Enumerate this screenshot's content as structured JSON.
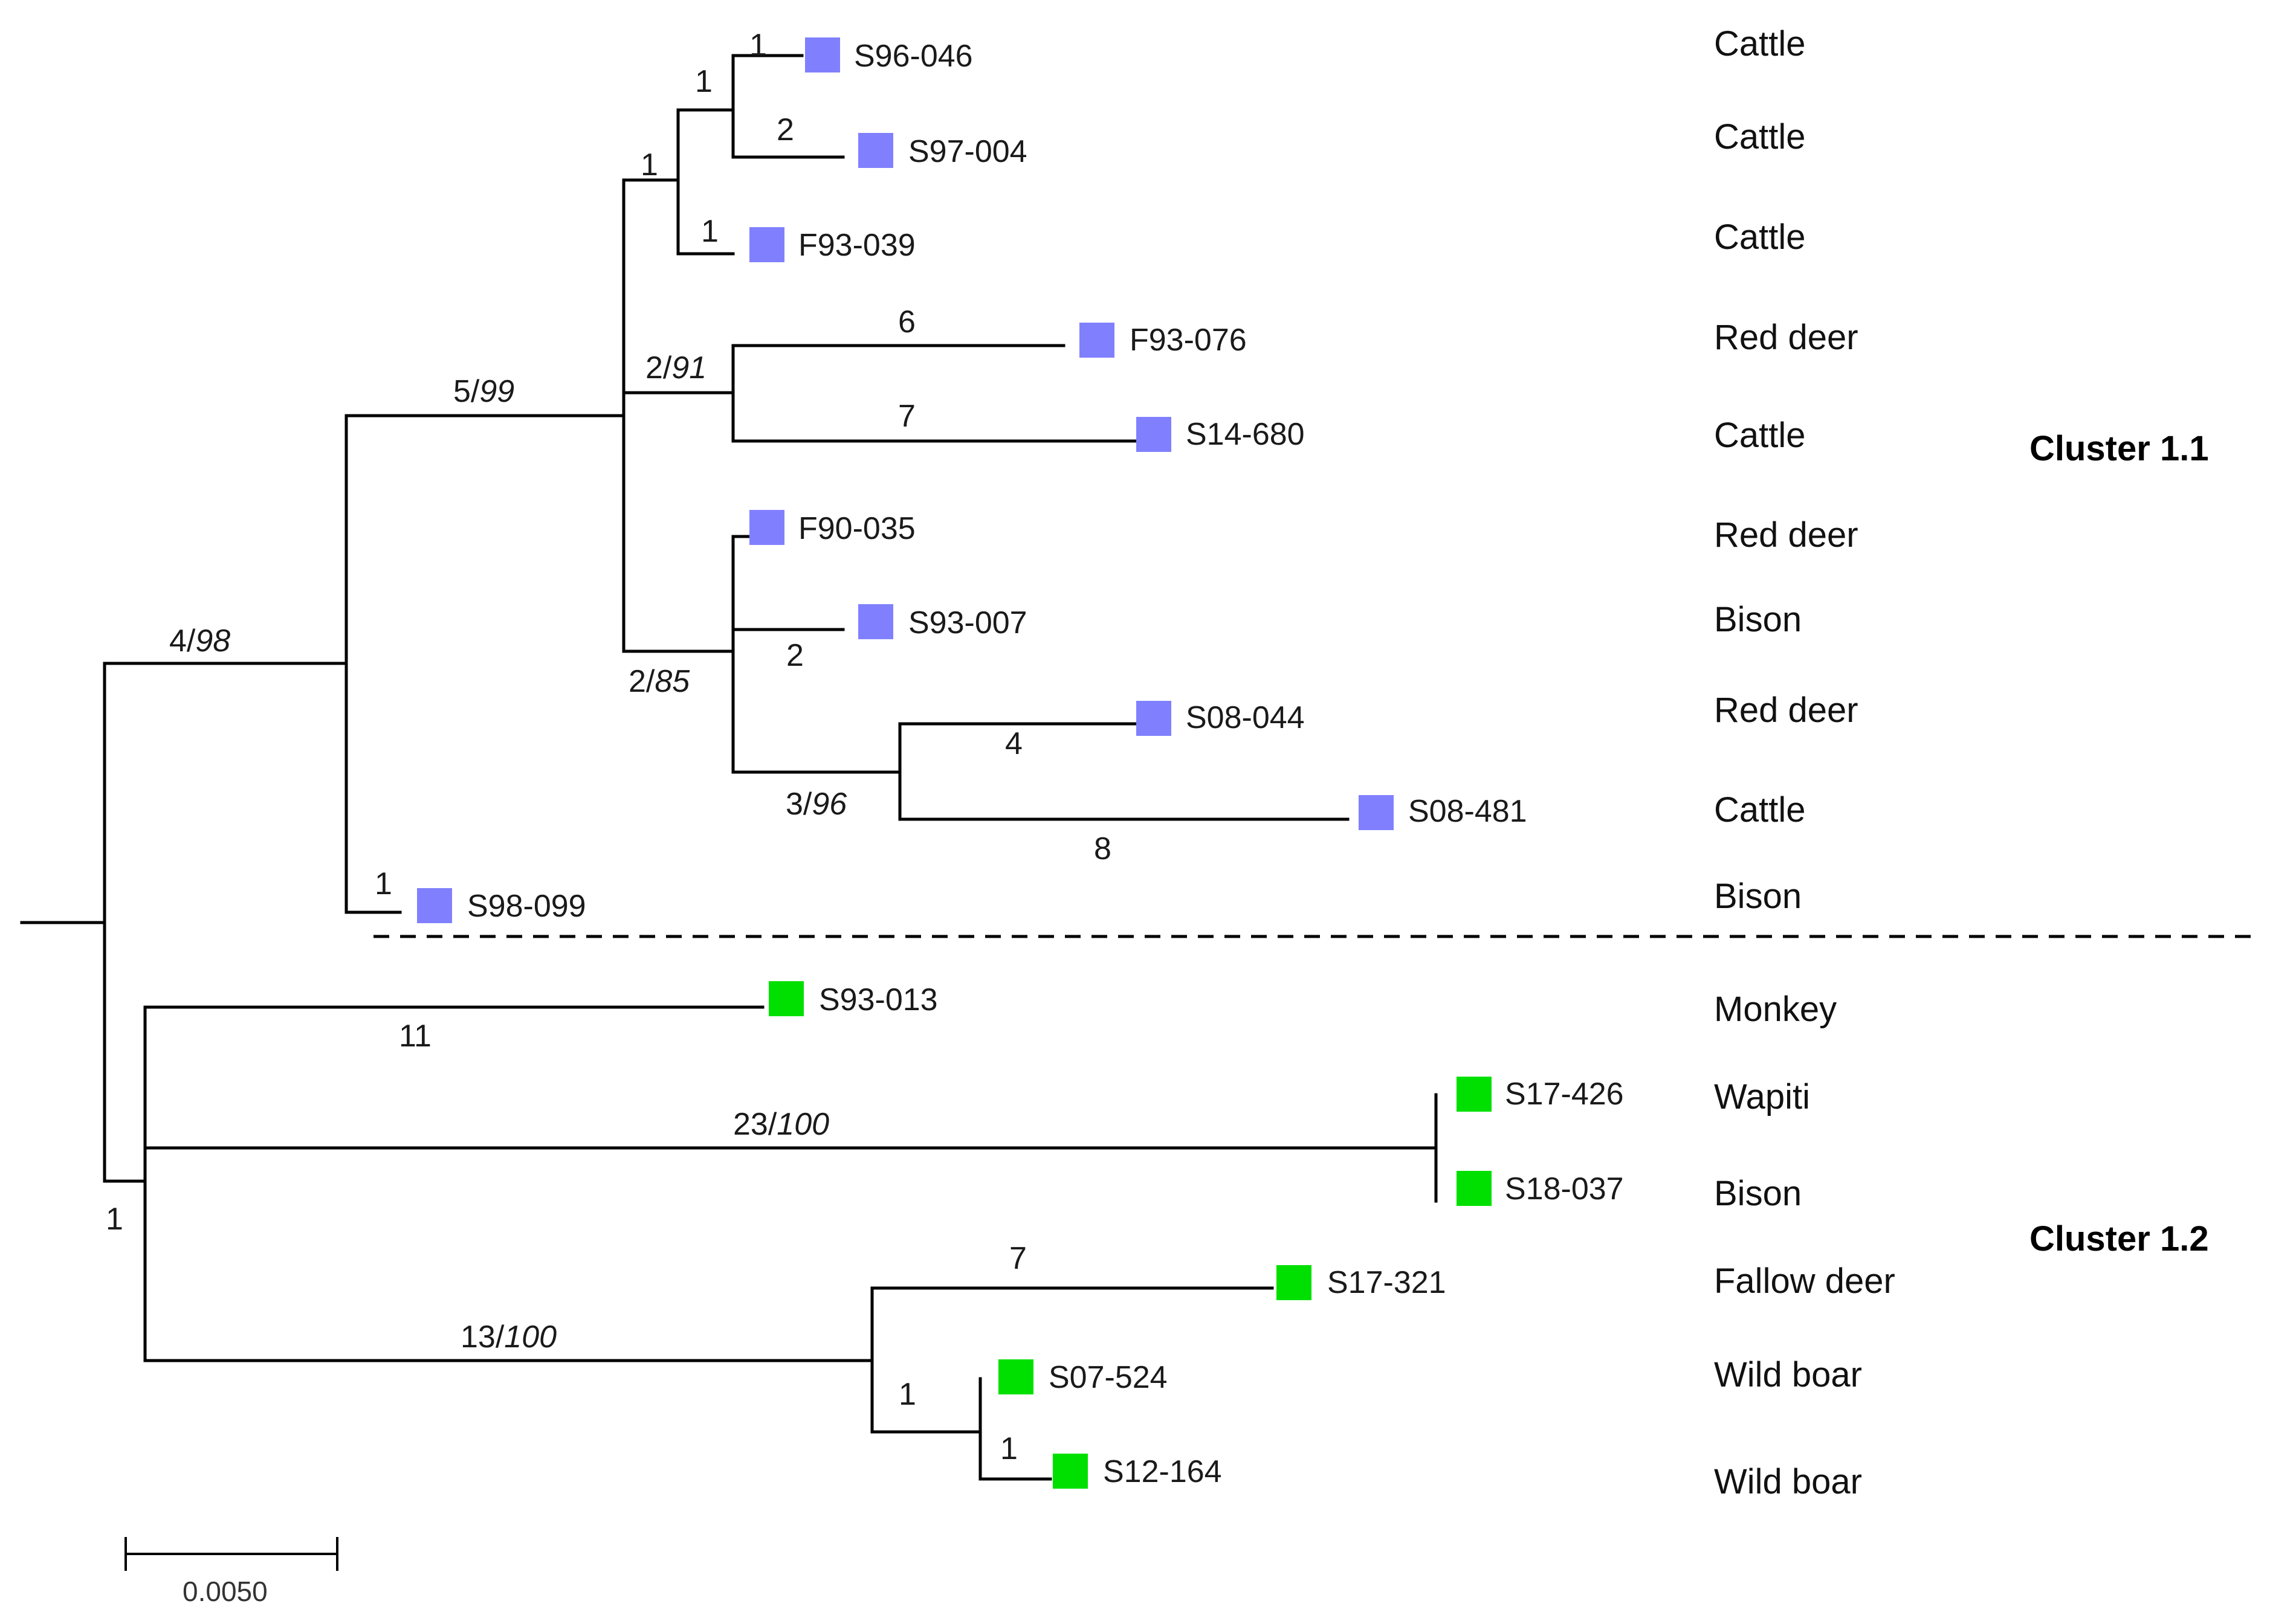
{
  "colors": {
    "cluster_1_1": "#8080ff",
    "cluster_1_2": "#00e000",
    "line": "#000000"
  },
  "taxa": [
    {
      "id": "S96-046",
      "host": "Cattle",
      "cluster": "1.1"
    },
    {
      "id": "S97-004",
      "host": "Cattle",
      "cluster": "1.1"
    },
    {
      "id": "F93-039",
      "host": "Cattle",
      "cluster": "1.1"
    },
    {
      "id": "F93-076",
      "host": "Red deer",
      "cluster": "1.1"
    },
    {
      "id": "S14-680",
      "host": "Cattle",
      "cluster": "1.1"
    },
    {
      "id": "F90-035",
      "host": "Red deer",
      "cluster": "1.1"
    },
    {
      "id": "S93-007",
      "host": "Bison",
      "cluster": "1.1"
    },
    {
      "id": "S08-044",
      "host": "Red deer",
      "cluster": "1.1"
    },
    {
      "id": "S08-481",
      "host": "Cattle",
      "cluster": "1.1"
    },
    {
      "id": "S98-099",
      "host": "Bison",
      "cluster": "1.1"
    },
    {
      "id": "S93-013",
      "host": "Monkey",
      "cluster": "1.2"
    },
    {
      "id": "S17-426",
      "host": "Wapiti",
      "cluster": "1.2"
    },
    {
      "id": "S18-037",
      "host": "Bison",
      "cluster": "1.2"
    },
    {
      "id": "S17-321",
      "host": "Fallow deer",
      "cluster": "1.2"
    },
    {
      "id": "S07-524",
      "host": "Wild boar",
      "cluster": "1.2"
    },
    {
      "id": "S12-164",
      "host": "Wild boar",
      "cluster": "1.2"
    }
  ],
  "clusters": [
    {
      "label": "Cluster 1.1"
    },
    {
      "label": "Cluster 1.2"
    }
  ],
  "branch_labels": [
    {
      "text": "1"
    },
    {
      "text": "1"
    },
    {
      "text": "2"
    },
    {
      "text": "1"
    },
    {
      "text": "1"
    },
    {
      "text": "6"
    },
    {
      "text": "7"
    },
    {
      "text": "2"
    },
    {
      "text": "4"
    },
    {
      "text": "8"
    },
    {
      "text": "1"
    },
    {
      "text": "11"
    },
    {
      "text": "1"
    },
    {
      "text": "7"
    },
    {
      "text": "1"
    },
    {
      "text": "1"
    }
  ],
  "support_labels": [
    {
      "count": "5/",
      "support": "99"
    },
    {
      "count": "2/",
      "support": "91"
    },
    {
      "count": "4/",
      "support": "98"
    },
    {
      "count": "2/",
      "support": "85"
    },
    {
      "count": "3/",
      "support": "96"
    },
    {
      "count": "23/",
      "support": "100"
    },
    {
      "count": "13/",
      "support": "100"
    }
  ],
  "scale_bar": {
    "label": "0.0050",
    "value": 0.005
  }
}
